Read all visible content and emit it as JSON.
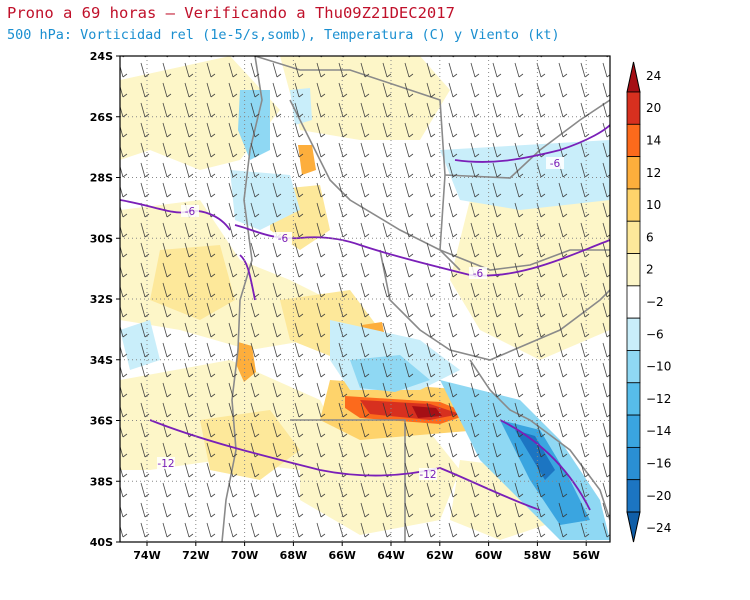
{
  "title": "Prono a 69 horas — Verificando a Thu09Z21DEC2017",
  "subtitle": "500 hPa: Vorticidad rel (1e-5/s,somb), Temperatura (C) y Viento (kt)",
  "lat_labels": [
    "24S",
    "26S",
    "28S",
    "30S",
    "32S",
    "34S",
    "36S",
    "38S",
    "40S"
  ],
  "lon_labels": [
    "74W",
    "72W",
    "70W",
    "68W",
    "66W",
    "64W",
    "62W",
    "60W",
    "58W",
    "56W"
  ],
  "colorbar": {
    "labels": [
      "24",
      "20",
      "14",
      "12",
      "10",
      "6",
      "2",
      "−2",
      "−6",
      "−10",
      "−12",
      "−14",
      "−16",
      "−20",
      "−24"
    ],
    "colors": [
      "#a50f15",
      "#d7301f",
      "#fc6a1c",
      "#fdae3c",
      "#fed36b",
      "#fde89a",
      "#fdf6c8",
      "#ffffff",
      "#c9eefa",
      "#8fd8f3",
      "#57bdea",
      "#3aa5e0",
      "#2a8fd4",
      "#1c75c2",
      "#0f5ea8"
    ]
  },
  "temperature_contours": {
    "color": "#7a1fb8",
    "labels": [
      "-6",
      "-6",
      "-6",
      "-6",
      "-12",
      "-12"
    ]
  }
}
